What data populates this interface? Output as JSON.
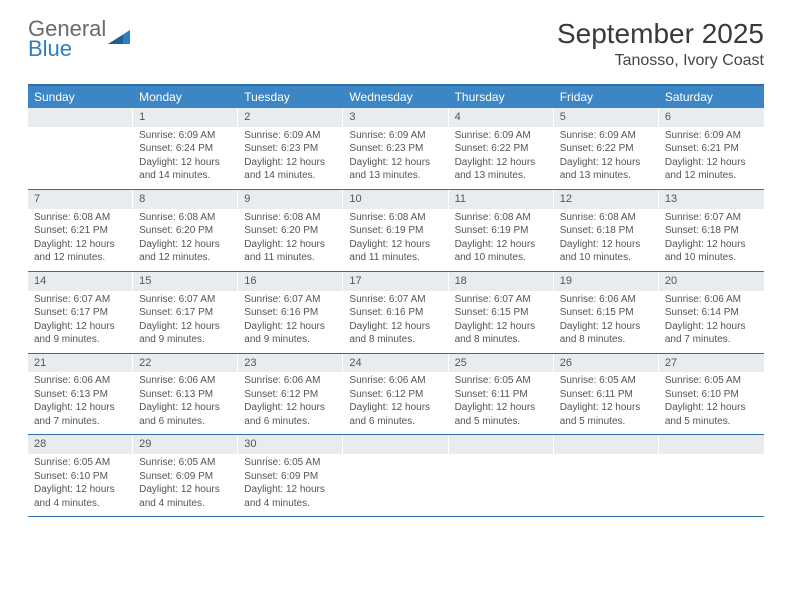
{
  "logo": {
    "word1": "General",
    "word2": "Blue"
  },
  "title": "September 2025",
  "location": "Tanosso, Ivory Coast",
  "colors": {
    "header_bg": "#3d86c6",
    "header_text": "#ffffff",
    "rule": "#2f6fa8",
    "daynum_bg": "#e9ecef",
    "text": "#555555",
    "logo_gray": "#6a6a6a",
    "logo_blue": "#2f7fbf"
  },
  "day_names": [
    "Sunday",
    "Monday",
    "Tuesday",
    "Wednesday",
    "Thursday",
    "Friday",
    "Saturday"
  ],
  "weeks": [
    [
      null,
      {
        "n": "1",
        "sr": "Sunrise: 6:09 AM",
        "ss": "Sunset: 6:24 PM",
        "d1": "Daylight: 12 hours",
        "d2": "and 14 minutes."
      },
      {
        "n": "2",
        "sr": "Sunrise: 6:09 AM",
        "ss": "Sunset: 6:23 PM",
        "d1": "Daylight: 12 hours",
        "d2": "and 14 minutes."
      },
      {
        "n": "3",
        "sr": "Sunrise: 6:09 AM",
        "ss": "Sunset: 6:23 PM",
        "d1": "Daylight: 12 hours",
        "d2": "and 13 minutes."
      },
      {
        "n": "4",
        "sr": "Sunrise: 6:09 AM",
        "ss": "Sunset: 6:22 PM",
        "d1": "Daylight: 12 hours",
        "d2": "and 13 minutes."
      },
      {
        "n": "5",
        "sr": "Sunrise: 6:09 AM",
        "ss": "Sunset: 6:22 PM",
        "d1": "Daylight: 12 hours",
        "d2": "and 13 minutes."
      },
      {
        "n": "6",
        "sr": "Sunrise: 6:09 AM",
        "ss": "Sunset: 6:21 PM",
        "d1": "Daylight: 12 hours",
        "d2": "and 12 minutes."
      }
    ],
    [
      {
        "n": "7",
        "sr": "Sunrise: 6:08 AM",
        "ss": "Sunset: 6:21 PM",
        "d1": "Daylight: 12 hours",
        "d2": "and 12 minutes."
      },
      {
        "n": "8",
        "sr": "Sunrise: 6:08 AM",
        "ss": "Sunset: 6:20 PM",
        "d1": "Daylight: 12 hours",
        "d2": "and 12 minutes."
      },
      {
        "n": "9",
        "sr": "Sunrise: 6:08 AM",
        "ss": "Sunset: 6:20 PM",
        "d1": "Daylight: 12 hours",
        "d2": "and 11 minutes."
      },
      {
        "n": "10",
        "sr": "Sunrise: 6:08 AM",
        "ss": "Sunset: 6:19 PM",
        "d1": "Daylight: 12 hours",
        "d2": "and 11 minutes."
      },
      {
        "n": "11",
        "sr": "Sunrise: 6:08 AM",
        "ss": "Sunset: 6:19 PM",
        "d1": "Daylight: 12 hours",
        "d2": "and 10 minutes."
      },
      {
        "n": "12",
        "sr": "Sunrise: 6:08 AM",
        "ss": "Sunset: 6:18 PM",
        "d1": "Daylight: 12 hours",
        "d2": "and 10 minutes."
      },
      {
        "n": "13",
        "sr": "Sunrise: 6:07 AM",
        "ss": "Sunset: 6:18 PM",
        "d1": "Daylight: 12 hours",
        "d2": "and 10 minutes."
      }
    ],
    [
      {
        "n": "14",
        "sr": "Sunrise: 6:07 AM",
        "ss": "Sunset: 6:17 PM",
        "d1": "Daylight: 12 hours",
        "d2": "and 9 minutes."
      },
      {
        "n": "15",
        "sr": "Sunrise: 6:07 AM",
        "ss": "Sunset: 6:17 PM",
        "d1": "Daylight: 12 hours",
        "d2": "and 9 minutes."
      },
      {
        "n": "16",
        "sr": "Sunrise: 6:07 AM",
        "ss": "Sunset: 6:16 PM",
        "d1": "Daylight: 12 hours",
        "d2": "and 9 minutes."
      },
      {
        "n": "17",
        "sr": "Sunrise: 6:07 AM",
        "ss": "Sunset: 6:16 PM",
        "d1": "Daylight: 12 hours",
        "d2": "and 8 minutes."
      },
      {
        "n": "18",
        "sr": "Sunrise: 6:07 AM",
        "ss": "Sunset: 6:15 PM",
        "d1": "Daylight: 12 hours",
        "d2": "and 8 minutes."
      },
      {
        "n": "19",
        "sr": "Sunrise: 6:06 AM",
        "ss": "Sunset: 6:15 PM",
        "d1": "Daylight: 12 hours",
        "d2": "and 8 minutes."
      },
      {
        "n": "20",
        "sr": "Sunrise: 6:06 AM",
        "ss": "Sunset: 6:14 PM",
        "d1": "Daylight: 12 hours",
        "d2": "and 7 minutes."
      }
    ],
    [
      {
        "n": "21",
        "sr": "Sunrise: 6:06 AM",
        "ss": "Sunset: 6:13 PM",
        "d1": "Daylight: 12 hours",
        "d2": "and 7 minutes."
      },
      {
        "n": "22",
        "sr": "Sunrise: 6:06 AM",
        "ss": "Sunset: 6:13 PM",
        "d1": "Daylight: 12 hours",
        "d2": "and 6 minutes."
      },
      {
        "n": "23",
        "sr": "Sunrise: 6:06 AM",
        "ss": "Sunset: 6:12 PM",
        "d1": "Daylight: 12 hours",
        "d2": "and 6 minutes."
      },
      {
        "n": "24",
        "sr": "Sunrise: 6:06 AM",
        "ss": "Sunset: 6:12 PM",
        "d1": "Daylight: 12 hours",
        "d2": "and 6 minutes."
      },
      {
        "n": "25",
        "sr": "Sunrise: 6:05 AM",
        "ss": "Sunset: 6:11 PM",
        "d1": "Daylight: 12 hours",
        "d2": "and 5 minutes."
      },
      {
        "n": "26",
        "sr": "Sunrise: 6:05 AM",
        "ss": "Sunset: 6:11 PM",
        "d1": "Daylight: 12 hours",
        "d2": "and 5 minutes."
      },
      {
        "n": "27",
        "sr": "Sunrise: 6:05 AM",
        "ss": "Sunset: 6:10 PM",
        "d1": "Daylight: 12 hours",
        "d2": "and 5 minutes."
      }
    ],
    [
      {
        "n": "28",
        "sr": "Sunrise: 6:05 AM",
        "ss": "Sunset: 6:10 PM",
        "d1": "Daylight: 12 hours",
        "d2": "and 4 minutes."
      },
      {
        "n": "29",
        "sr": "Sunrise: 6:05 AM",
        "ss": "Sunset: 6:09 PM",
        "d1": "Daylight: 12 hours",
        "d2": "and 4 minutes."
      },
      {
        "n": "30",
        "sr": "Sunrise: 6:05 AM",
        "ss": "Sunset: 6:09 PM",
        "d1": "Daylight: 12 hours",
        "d2": "and 4 minutes."
      },
      null,
      null,
      null,
      null
    ]
  ]
}
